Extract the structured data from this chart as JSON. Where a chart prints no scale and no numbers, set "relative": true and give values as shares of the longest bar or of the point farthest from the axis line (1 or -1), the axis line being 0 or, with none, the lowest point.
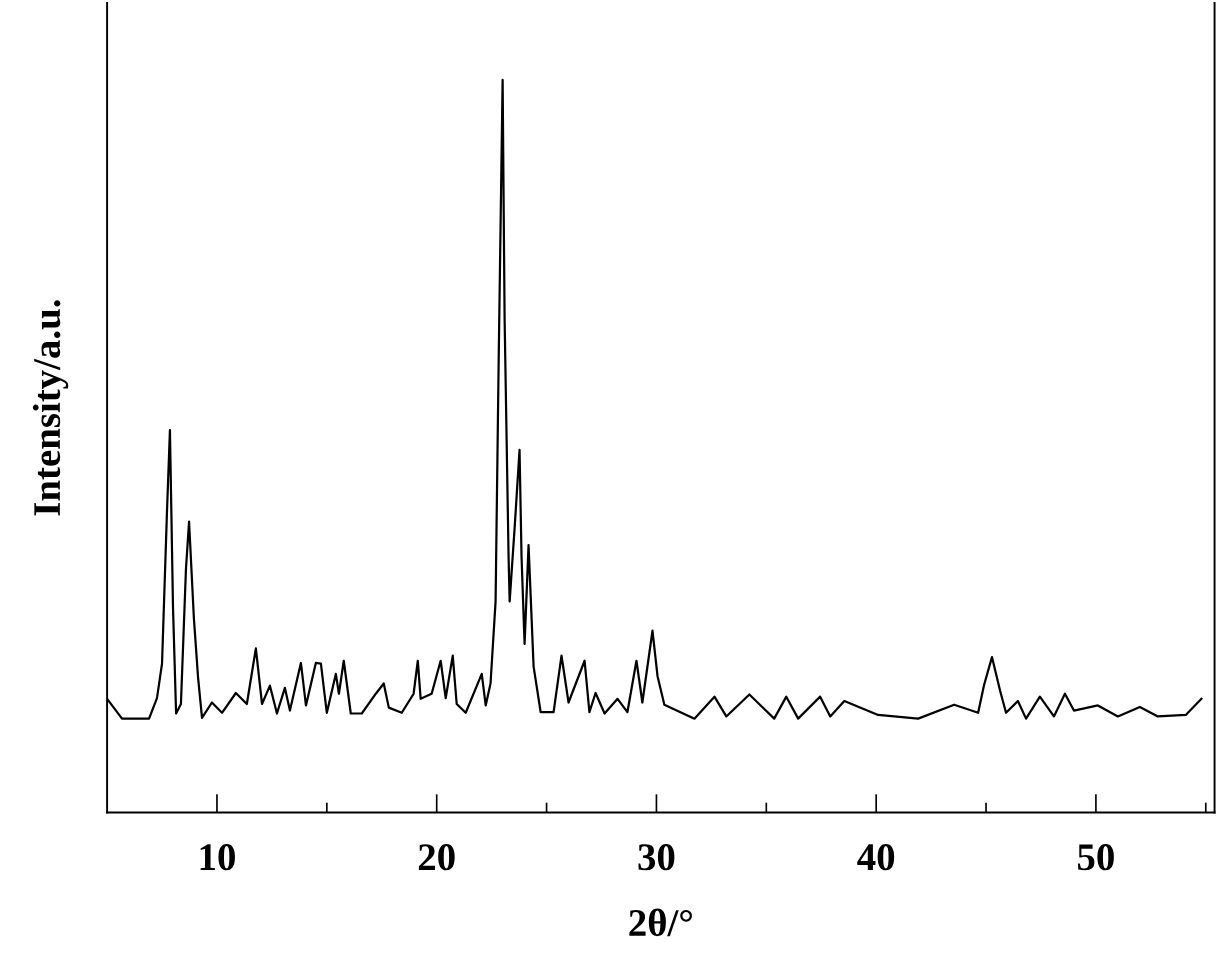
{
  "chart_data": {
    "type": "line",
    "xlabel": "2θ/°",
    "ylabel": "Intensity/a.u.",
    "relative": true,
    "xlim": [
      5,
      55.4
    ],
    "xticks": [
      10,
      20,
      30,
      40,
      50,
      {
        "value": 15,
        "label": null
      },
      {
        "value": 25,
        "label": null
      },
      {
        "value": 35,
        "label": null
      },
      {
        "value": 45,
        "label": null
      },
      {
        "value": 55,
        "label": null
      }
    ],
    "grid": false,
    "legend": false,
    "marker": "none",
    "line_style": "solid",
    "series": [
      {
        "color": "#000000",
        "x": [
          5.0,
          5.68,
          6.91,
          7.27,
          7.5,
          7.73,
          7.86,
          8.0,
          8.14,
          8.36,
          8.59,
          8.73,
          8.95,
          9.14,
          9.32,
          9.77,
          10.23,
          10.86,
          11.36,
          11.77,
          12.05,
          12.41,
          12.73,
          13.09,
          13.32,
          13.82,
          14.05,
          14.5,
          14.73,
          15.0,
          15.41,
          15.55,
          15.77,
          16.09,
          16.59,
          17.23,
          17.59,
          17.82,
          18.41,
          18.95,
          19.14,
          19.27,
          19.77,
          20.18,
          20.41,
          20.73,
          20.91,
          21.32,
          22.05,
          22.23,
          22.45,
          22.68,
          22.82,
          23.0,
          23.09,
          23.27,
          23.32,
          23.55,
          23.77,
          23.86,
          24.0,
          24.18,
          24.41,
          24.73,
          25.32,
          25.68,
          26.0,
          26.73,
          26.95,
          27.23,
          27.64,
          28.23,
          28.68,
          29.09,
          29.36,
          29.82,
          30.05,
          30.36,
          31.73,
          32.64,
          33.18,
          34.23,
          35.36,
          35.91,
          36.45,
          37.45,
          37.91,
          38.55,
          40.09,
          41.91,
          43.55,
          44.64,
          44.91,
          45.27,
          45.64,
          45.91,
          46.45,
          46.82,
          47.45,
          48.09,
          48.59,
          49.0,
          50.09,
          51.0,
          52.0,
          52.82,
          54.09,
          54.8
        ],
        "values": [
          0.155,
          0.128,
          0.128,
          0.156,
          0.203,
          0.415,
          0.522,
          0.279,
          0.135,
          0.148,
          0.333,
          0.397,
          0.265,
          0.184,
          0.129,
          0.15,
          0.136,
          0.163,
          0.148,
          0.224,
          0.148,
          0.173,
          0.135,
          0.17,
          0.139,
          0.204,
          0.146,
          0.204,
          0.203,
          0.136,
          0.189,
          0.162,
          0.207,
          0.135,
          0.135,
          0.162,
          0.176,
          0.143,
          0.136,
          0.162,
          0.207,
          0.155,
          0.162,
          0.207,
          0.156,
          0.214,
          0.148,
          0.136,
          0.189,
          0.146,
          0.176,
          0.288,
          0.616,
          1.0,
          0.675,
          0.35,
          0.288,
          0.39,
          0.495,
          0.35,
          0.23,
          0.365,
          0.199,
          0.137,
          0.137,
          0.214,
          0.15,
          0.207,
          0.137,
          0.163,
          0.135,
          0.155,
          0.137,
          0.207,
          0.15,
          0.248,
          0.186,
          0.147,
          0.128,
          0.158,
          0.131,
          0.161,
          0.128,
          0.158,
          0.128,
          0.158,
          0.131,
          0.152,
          0.133,
          0.128,
          0.147,
          0.136,
          0.174,
          0.212,
          0.166,
          0.136,
          0.152,
          0.128,
          0.158,
          0.131,
          0.162,
          0.139,
          0.146,
          0.131,
          0.144,
          0.131,
          0.133,
          0.155
        ]
      }
    ]
  }
}
